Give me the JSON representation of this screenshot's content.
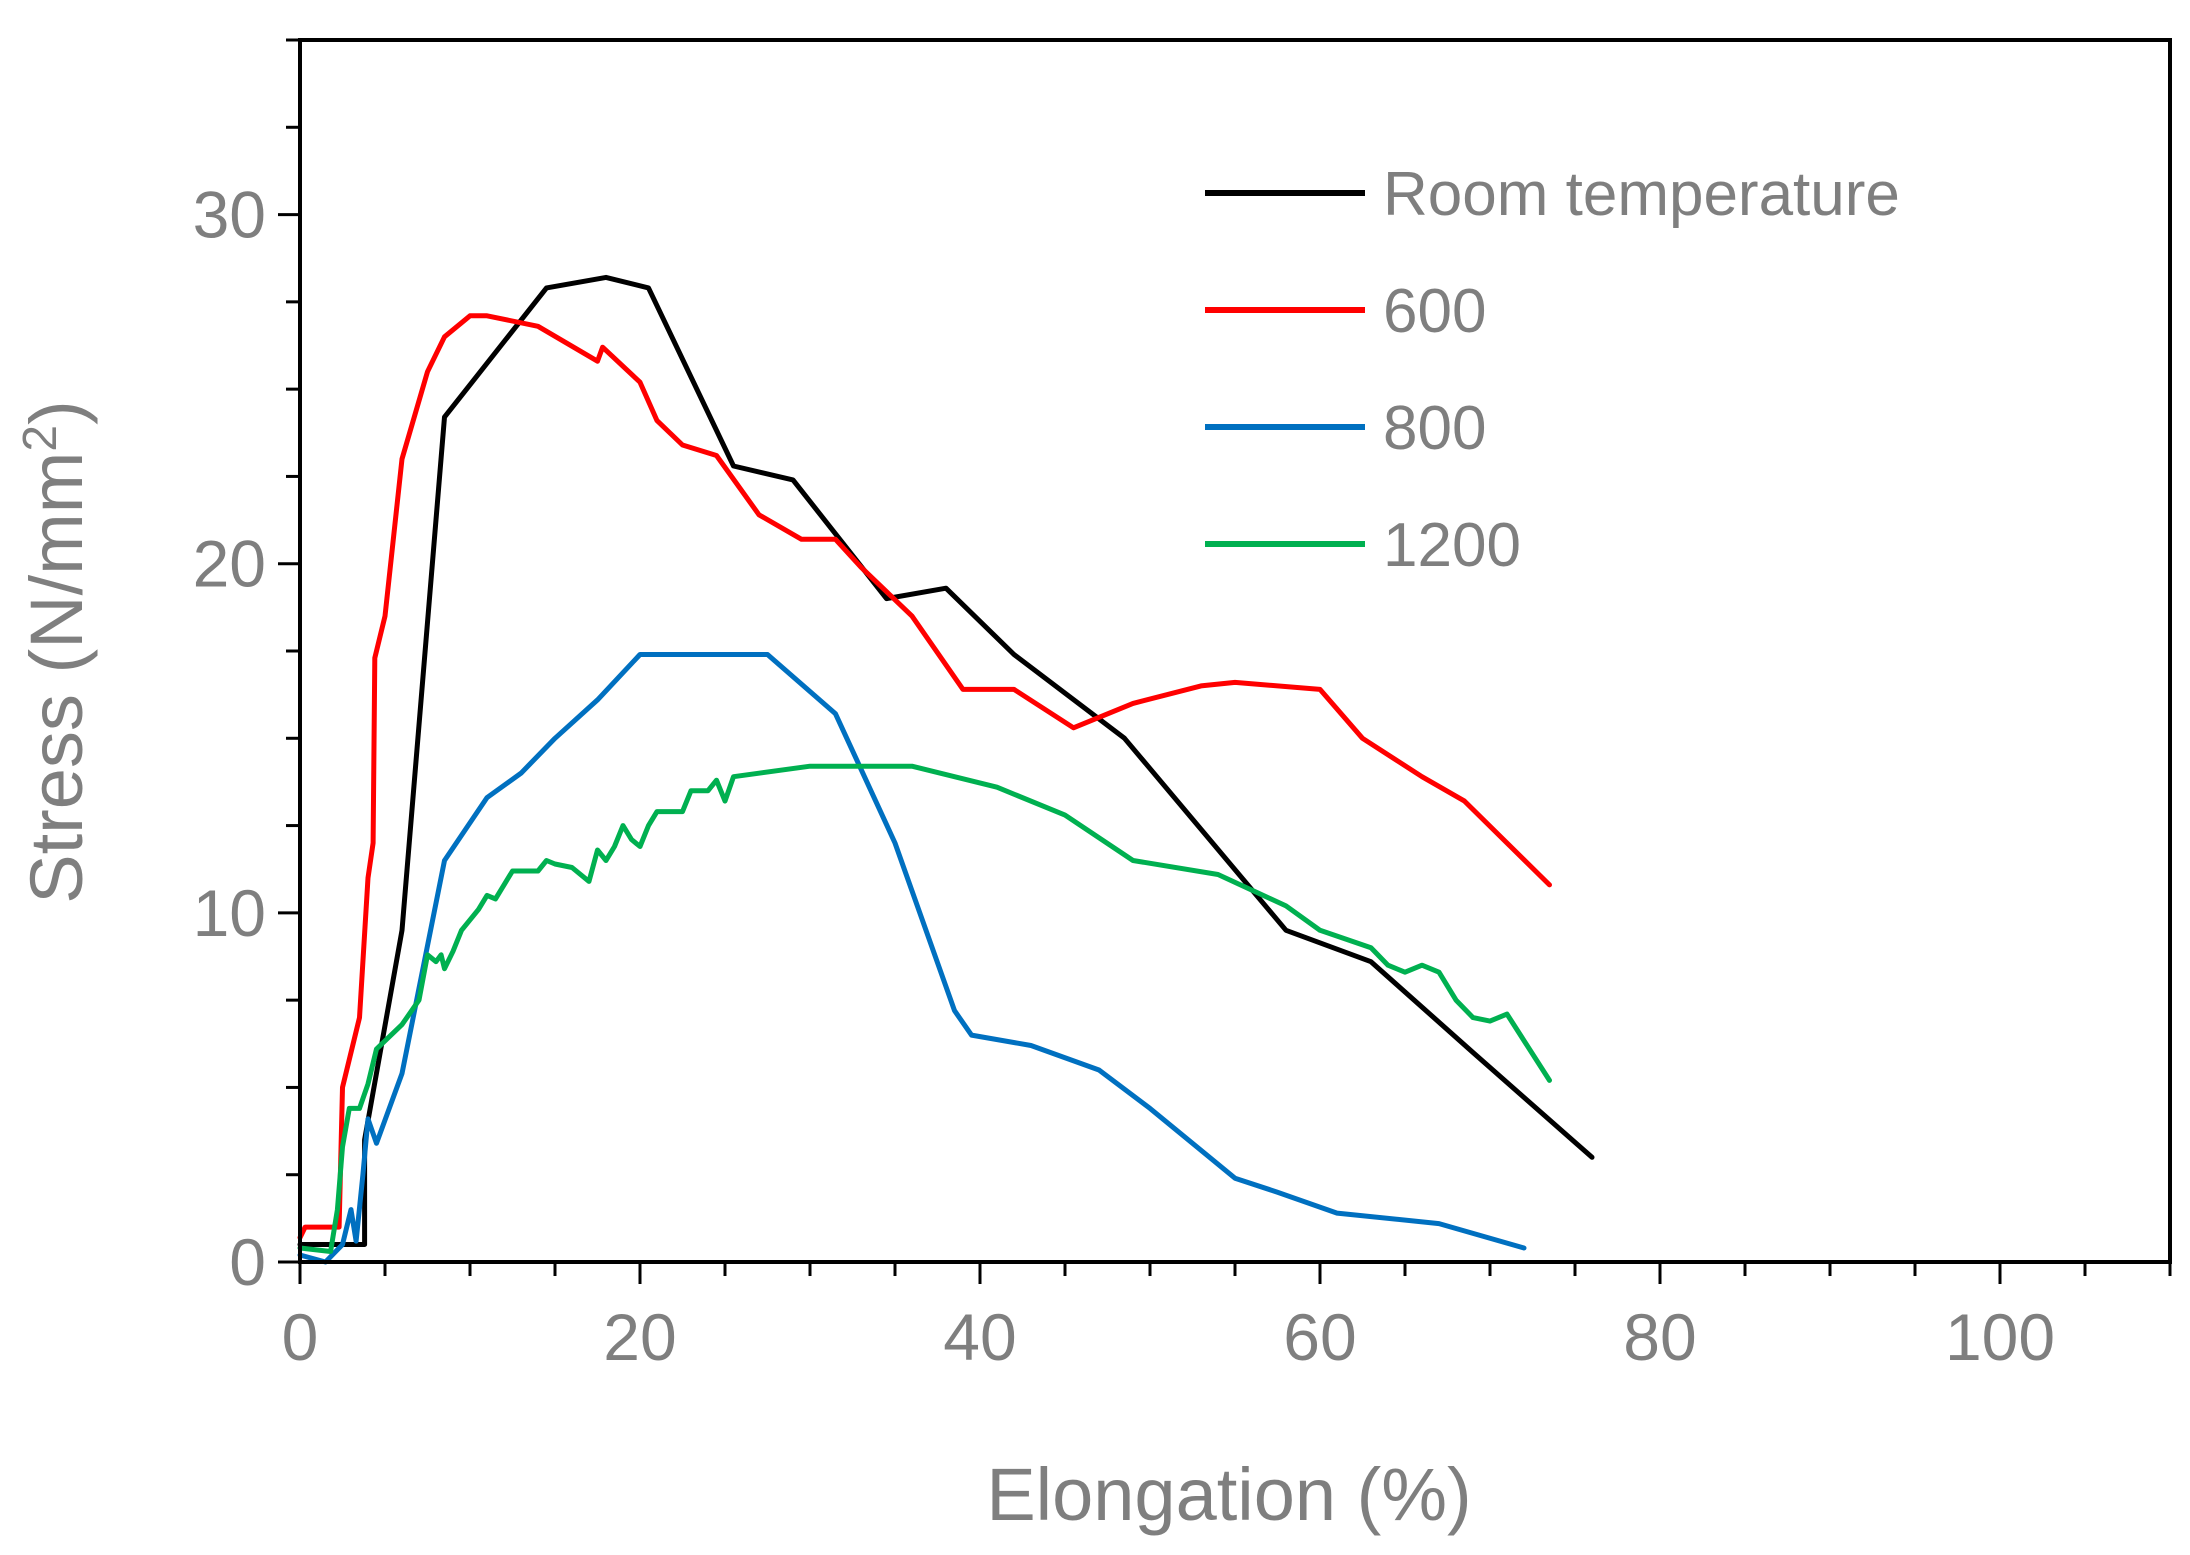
{
  "chart_data": {
    "type": "line",
    "title": "",
    "xlabel": "Elongation (%)",
    "ylabel_main": "Stress (N/mm",
    "ylabel_sup": "2",
    "ylabel_close": ")",
    "xlim": [
      0,
      110
    ],
    "ylim": [
      0,
      35
    ],
    "x_ticks": [
      0,
      20,
      40,
      60,
      80,
      100
    ],
    "x_tick_labels": [
      "0",
      "20",
      "40",
      "60",
      "80",
      "100"
    ],
    "y_ticks": [
      0,
      10,
      20,
      30
    ],
    "y_tick_labels": [
      "0",
      "10",
      "20",
      "30"
    ],
    "grid": false,
    "legend_position": "top-right",
    "series": [
      {
        "name": "Room temperature",
        "color": "#000000",
        "points": [
          [
            0,
            0.5
          ],
          [
            3.8,
            0.5
          ],
          [
            3.8,
            3.5
          ],
          [
            6,
            9.5
          ],
          [
            8.5,
            24.2
          ],
          [
            14.5,
            27.9
          ],
          [
            18,
            28.2
          ],
          [
            20.5,
            27.9
          ],
          [
            25.5,
            22.8
          ],
          [
            29,
            22.4
          ],
          [
            34.5,
            19
          ],
          [
            38,
            19.3
          ],
          [
            42,
            17.4
          ],
          [
            48.5,
            15
          ],
          [
            58,
            9.5
          ],
          [
            63,
            8.6
          ],
          [
            69,
            6
          ],
          [
            76,
            3
          ]
        ]
      },
      {
        "name": "600",
        "color": "#ff0000",
        "points": [
          [
            0,
            0.7
          ],
          [
            0.3,
            1
          ],
          [
            2.3,
            1
          ],
          [
            2.5,
            5
          ],
          [
            3.5,
            7
          ],
          [
            4,
            11
          ],
          [
            4.3,
            12
          ],
          [
            4.4,
            17.3
          ],
          [
            5,
            18.5
          ],
          [
            6,
            23
          ],
          [
            7.5,
            25.5
          ],
          [
            8.5,
            26.5
          ],
          [
            10,
            27.1
          ],
          [
            11,
            27.1
          ],
          [
            14,
            26.8
          ],
          [
            17.5,
            25.8
          ],
          [
            17.8,
            26.2
          ],
          [
            20,
            25.2
          ],
          [
            21,
            24.1
          ],
          [
            22.5,
            23.4
          ],
          [
            24.5,
            23.1
          ],
          [
            27,
            21.4
          ],
          [
            29.5,
            20.7
          ],
          [
            31.5,
            20.7
          ],
          [
            33,
            19.9
          ],
          [
            36,
            18.5
          ],
          [
            39,
            16.4
          ],
          [
            42,
            16.4
          ],
          [
            45.5,
            15.3
          ],
          [
            49,
            16
          ],
          [
            53,
            16.5
          ],
          [
            55,
            16.6
          ],
          [
            60,
            16.4
          ],
          [
            62.5,
            15
          ],
          [
            66,
            13.9
          ],
          [
            68.5,
            13.2
          ],
          [
            73.5,
            10.8
          ]
        ]
      },
      {
        "name": "800",
        "color": "#0070c0",
        "points": [
          [
            0,
            0.2
          ],
          [
            1.5,
            0
          ],
          [
            2.5,
            0.5
          ],
          [
            3,
            1.5
          ],
          [
            3.3,
            0.6
          ],
          [
            3.7,
            2.5
          ],
          [
            4,
            4.1
          ],
          [
            4.5,
            3.4
          ],
          [
            6,
            5.4
          ],
          [
            8.5,
            11.5
          ],
          [
            11,
            13.3
          ],
          [
            13,
            14
          ],
          [
            15,
            15
          ],
          [
            17.5,
            16.1
          ],
          [
            20,
            17.4
          ],
          [
            27.5,
            17.4
          ],
          [
            31.5,
            15.7
          ],
          [
            35,
            12
          ],
          [
            38.5,
            7.2
          ],
          [
            39.5,
            6.5
          ],
          [
            43,
            6.2
          ],
          [
            47,
            5.5
          ],
          [
            50,
            4.4
          ],
          [
            55,
            2.4
          ],
          [
            57.5,
            2
          ],
          [
            61,
            1.4
          ],
          [
            67,
            1.1
          ],
          [
            72,
            0.4
          ]
        ]
      },
      {
        "name": "1200",
        "color": "#00b050",
        "points": [
          [
            0,
            0.4
          ],
          [
            1.8,
            0.3
          ],
          [
            2.2,
            1.5
          ],
          [
            2.5,
            3.3
          ],
          [
            2.9,
            4.4
          ],
          [
            3.5,
            4.4
          ],
          [
            4,
            5.1
          ],
          [
            4.5,
            6.1
          ],
          [
            6,
            6.8
          ],
          [
            7,
            7.5
          ],
          [
            7.5,
            8.8
          ],
          [
            8,
            8.6
          ],
          [
            8.3,
            8.8
          ],
          [
            8.5,
            8.4
          ],
          [
            9,
            8.9
          ],
          [
            9.5,
            9.5
          ],
          [
            10.5,
            10.1
          ],
          [
            11,
            10.5
          ],
          [
            11.5,
            10.4
          ],
          [
            12,
            10.8
          ],
          [
            12.5,
            11.2
          ],
          [
            14,
            11.2
          ],
          [
            14.5,
            11.5
          ],
          [
            15,
            11.4
          ],
          [
            16,
            11.3
          ],
          [
            17,
            10.9
          ],
          [
            17.5,
            11.8
          ],
          [
            18,
            11.5
          ],
          [
            18.5,
            11.9
          ],
          [
            19,
            12.5
          ],
          [
            19.5,
            12.1
          ],
          [
            20,
            11.9
          ],
          [
            20.5,
            12.5
          ],
          [
            21,
            12.9
          ],
          [
            22.5,
            12.9
          ],
          [
            23,
            13.5
          ],
          [
            24,
            13.5
          ],
          [
            24.5,
            13.8
          ],
          [
            25,
            13.2
          ],
          [
            25.5,
            13.9
          ],
          [
            27,
            14
          ],
          [
            30,
            14.2
          ],
          [
            36,
            14.2
          ],
          [
            41,
            13.6
          ],
          [
            45,
            12.8
          ],
          [
            49,
            11.5
          ],
          [
            54,
            11.1
          ],
          [
            58,
            10.2
          ],
          [
            60,
            9.5
          ],
          [
            63,
            9
          ],
          [
            64,
            8.5
          ],
          [
            65,
            8.3
          ],
          [
            66,
            8.5
          ],
          [
            66.5,
            8.4
          ],
          [
            67,
            8.3
          ],
          [
            68,
            7.5
          ],
          [
            69,
            7
          ],
          [
            70,
            6.9
          ],
          [
            71,
            7.1
          ],
          [
            73.5,
            5.2
          ]
        ]
      }
    ]
  }
}
